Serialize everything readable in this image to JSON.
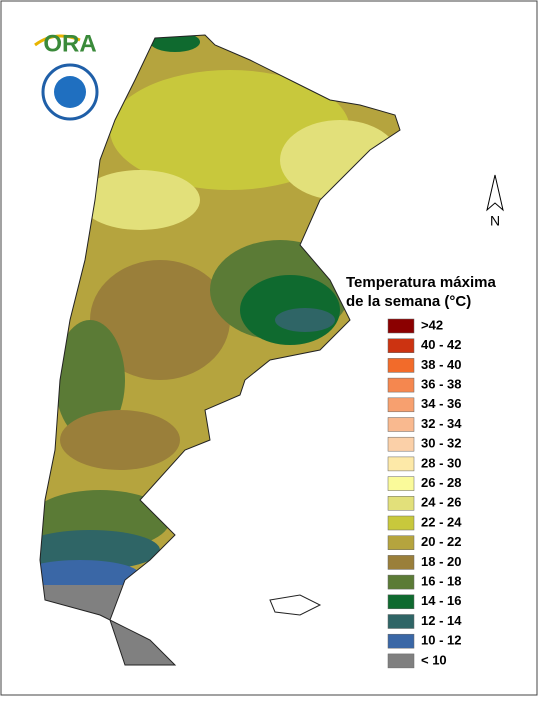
{
  "logo": {
    "text": "ORA"
  },
  "compass": {
    "label": "N"
  },
  "legend": {
    "title_lines": [
      "Temperatura máxima",
      "de la semana (°C)"
    ],
    "items": [
      {
        "label": ">42",
        "color": "#8b0000"
      },
      {
        "label": "40 - 42",
        "color": "#cc3311"
      },
      {
        "label": "38 - 40",
        "color": "#f26b2a"
      },
      {
        "label": "36 - 38",
        "color": "#f5874f"
      },
      {
        "label": "34 - 36",
        "color": "#f7a06f"
      },
      {
        "label": "32 - 34",
        "color": "#f9b98f"
      },
      {
        "label": "30 - 32",
        "color": "#fbd0a8"
      },
      {
        "label": "28 - 30",
        "color": "#fde9a8"
      },
      {
        "label": "26 - 28",
        "color": "#fafa9a"
      },
      {
        "label": "24 - 26",
        "color": "#e2e07a"
      },
      {
        "label": "22 - 24",
        "color": "#c8c83c"
      },
      {
        "label": "20 - 22",
        "color": "#b5a43e"
      },
      {
        "label": "18 - 20",
        "color": "#9a7f3a"
      },
      {
        "label": "16 - 18",
        "color": "#5b7b36"
      },
      {
        "label": "14 - 16",
        "color": "#0f6a2f"
      },
      {
        "label": "12 - 14",
        "color": "#2f6566"
      },
      {
        "label": "10 - 12",
        "color": "#3a67a6"
      },
      {
        "label": "< 10",
        "color": "#808080"
      }
    ]
  }
}
